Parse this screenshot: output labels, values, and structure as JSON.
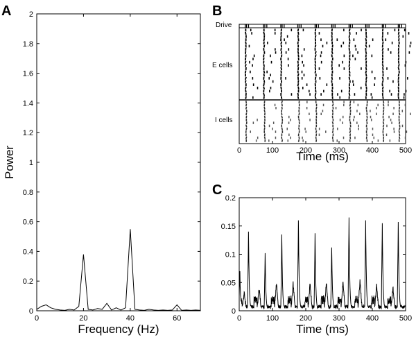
{
  "chart_data": [
    {
      "panel": "A",
      "type": "line",
      "xlabel": "Frequency (Hz)",
      "ylabel": "Power",
      "xlim": [
        0,
        70
      ],
      "ylim": [
        0,
        2
      ],
      "xticks": [
        0,
        20,
        40,
        60
      ],
      "yticks": [
        0,
        0.2,
        0.4,
        0.6,
        0.8,
        1,
        1.2,
        1.4,
        1.6,
        1.8,
        2
      ],
      "x": [
        0,
        2,
        4,
        6,
        8,
        10,
        12,
        14,
        16,
        18,
        20,
        22,
        24,
        26,
        28,
        30,
        32,
        34,
        36,
        38,
        40,
        42,
        44,
        46,
        48,
        50,
        52,
        54,
        56,
        58,
        60,
        62,
        64,
        66,
        68,
        70
      ],
      "y": [
        0.01,
        0.03,
        0.04,
        0.02,
        0.01,
        0.005,
        0.003,
        0.01,
        0.005,
        0.03,
        0.38,
        0.01,
        0.005,
        0.015,
        0.01,
        0.05,
        0.005,
        0.02,
        0.005,
        0.02,
        0.55,
        0.01,
        0.005,
        0.003,
        0.01,
        0.005,
        0.003,
        0.005,
        0.003,
        0.005,
        0.04,
        0.003,
        0.005,
        0.003,
        0.005,
        0.003
      ]
    },
    {
      "panel": "B",
      "type": "scatter",
      "xlabel": "Time (ms)",
      "xlim": [
        0,
        500
      ],
      "xticks": [
        0,
        100,
        200,
        300,
        400,
        500
      ],
      "rows": [
        "Drive",
        "E cells",
        "I cells"
      ],
      "cycle_times": [
        18,
        73,
        125,
        176,
        228,
        278,
        330,
        380,
        430,
        478
      ]
    },
    {
      "panel": "C",
      "type": "line",
      "xlabel": "Time (ms)",
      "xlim": [
        0,
        500
      ],
      "ylim": [
        0,
        0.2
      ],
      "xticks": [
        0,
        100,
        200,
        300,
        400,
        500
      ],
      "yticks": [
        0,
        0.05,
        0.1,
        0.15,
        0.2
      ],
      "peaks": [
        {
          "t": 2,
          "v": 0.07
        },
        {
          "t": 28,
          "v": 0.14
        },
        {
          "t": 78,
          "v": 0.102
        },
        {
          "t": 128,
          "v": 0.135
        },
        {
          "t": 178,
          "v": 0.16
        },
        {
          "t": 228,
          "v": 0.137
        },
        {
          "t": 278,
          "v": 0.112
        },
        {
          "t": 330,
          "v": 0.165
        },
        {
          "t": 380,
          "v": 0.16
        },
        {
          "t": 430,
          "v": 0.155
        },
        {
          "t": 478,
          "v": 0.157
        }
      ],
      "minor_peaks": [
        {
          "t": 15,
          "v": 0.028
        },
        {
          "t": 60,
          "v": 0.035
        },
        {
          "t": 112,
          "v": 0.045
        },
        {
          "t": 162,
          "v": 0.045
        },
        {
          "t": 213,
          "v": 0.045
        },
        {
          "t": 262,
          "v": 0.045
        },
        {
          "t": 312,
          "v": 0.048
        },
        {
          "t": 363,
          "v": 0.05
        },
        {
          "t": 413,
          "v": 0.04
        },
        {
          "t": 462,
          "v": 0.038
        }
      ]
    }
  ],
  "panel_letters": [
    "A",
    "B",
    "C"
  ]
}
